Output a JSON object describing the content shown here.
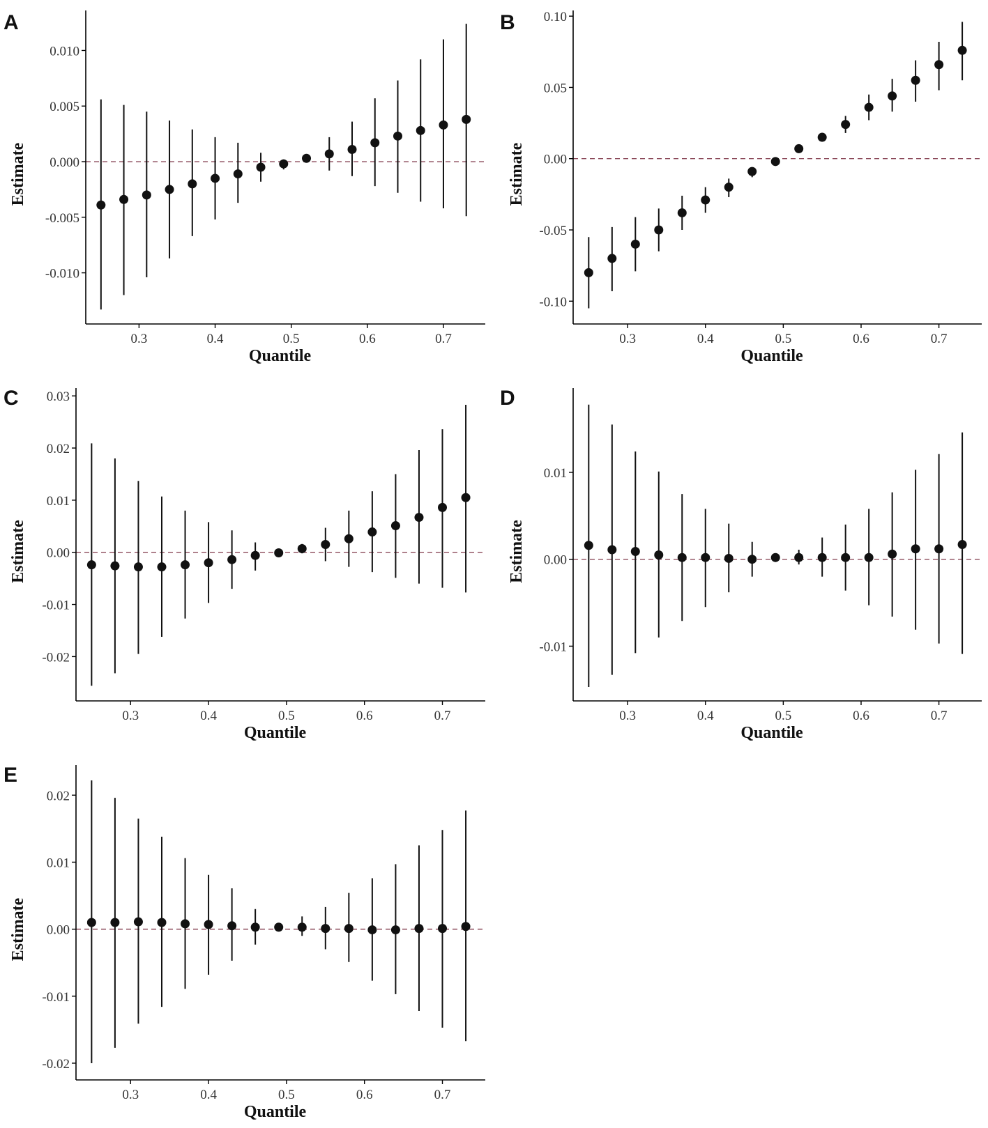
{
  "figure": {
    "colors": {
      "points": "#111111",
      "axes": "#000000",
      "reference_line": "#8b4a5a"
    }
  },
  "chart_data": [
    {
      "panel": "A",
      "type": "scatter",
      "title": "",
      "xlabel": "Quantile",
      "ylabel": "Estimate",
      "xlim": [
        0.23,
        0.755
      ],
      "ylim": [
        -0.0146,
        0.0136
      ],
      "xticks": [
        0.3,
        0.4,
        0.5,
        0.6,
        0.7
      ],
      "xtick_labels": [
        "0.3",
        "0.4",
        "0.5",
        "0.6",
        "0.7"
      ],
      "yticks": [
        -0.01,
        -0.005,
        0.0,
        0.005,
        0.01
      ],
      "ytick_labels": [
        "-0.010",
        "-0.005",
        "0.000",
        "0.005",
        "0.010"
      ],
      "reference_line": 0,
      "x": [
        0.25,
        0.28,
        0.31,
        0.34,
        0.37,
        0.4,
        0.43,
        0.46,
        0.49,
        0.52,
        0.55,
        0.58,
        0.61,
        0.64,
        0.67,
        0.7,
        0.73
      ],
      "estimate": [
        -0.0039,
        -0.0034,
        -0.003,
        -0.0025,
        -0.002,
        -0.0015,
        -0.0011,
        -0.0005,
        -0.0002,
        0.0003,
        0.0007,
        0.0011,
        0.0017,
        0.0023,
        0.0028,
        0.0033,
        0.0038
      ],
      "lower": [
        -0.0133,
        -0.012,
        -0.0104,
        -0.0087,
        -0.0067,
        -0.0052,
        -0.0037,
        -0.0018,
        -0.0007,
        0.0,
        -0.0008,
        -0.0013,
        -0.0022,
        -0.0028,
        -0.0036,
        -0.0042,
        -0.0049
      ],
      "upper": [
        0.0056,
        0.0051,
        0.0045,
        0.0037,
        0.0029,
        0.0022,
        0.0017,
        0.0008,
        0.0002,
        0.0006,
        0.0022,
        0.0036,
        0.0057,
        0.0073,
        0.0092,
        0.011,
        0.0124
      ]
    },
    {
      "panel": "B",
      "type": "scatter",
      "title": "",
      "xlabel": "Quantile",
      "ylabel": "Estimate",
      "xlim": [
        0.23,
        0.755
      ],
      "ylim": [
        -0.116,
        0.104
      ],
      "xticks": [
        0.3,
        0.4,
        0.5,
        0.6,
        0.7
      ],
      "xtick_labels": [
        "0.3",
        "0.4",
        "0.5",
        "0.6",
        "0.7"
      ],
      "yticks": [
        -0.1,
        -0.05,
        0.0,
        0.05,
        0.1
      ],
      "ytick_labels": [
        "-0.10",
        "-0.05",
        "0.00",
        "0.05",
        "0.10"
      ],
      "reference_line": 0,
      "x": [
        0.25,
        0.28,
        0.31,
        0.34,
        0.37,
        0.4,
        0.43,
        0.46,
        0.49,
        0.52,
        0.55,
        0.58,
        0.61,
        0.64,
        0.67,
        0.7,
        0.73
      ],
      "estimate": [
        -0.08,
        -0.07,
        -0.06,
        -0.05,
        -0.038,
        -0.029,
        -0.02,
        -0.009,
        -0.002,
        0.007,
        0.015,
        0.024,
        0.036,
        0.044,
        0.055,
        0.066,
        0.076
      ],
      "lower": [
        -0.105,
        -0.093,
        -0.079,
        -0.065,
        -0.05,
        -0.038,
        -0.027,
        -0.013,
        -0.004,
        0.005,
        0.012,
        0.018,
        0.027,
        0.033,
        0.04,
        0.048,
        0.055
      ],
      "upper": [
        -0.055,
        -0.048,
        -0.041,
        -0.035,
        -0.026,
        -0.02,
        -0.014,
        -0.006,
        0.0,
        0.01,
        0.018,
        0.03,
        0.045,
        0.056,
        0.069,
        0.082,
        0.096
      ]
    },
    {
      "panel": "C",
      "type": "scatter",
      "title": "",
      "xlabel": "Quantile",
      "ylabel": "Estimate",
      "xlim": [
        0.23,
        0.755
      ],
      "ylim": [
        -0.0285,
        0.0315
      ],
      "xticks": [
        0.3,
        0.4,
        0.5,
        0.6,
        0.7
      ],
      "xtick_labels": [
        "0.3",
        "0.4",
        "0.5",
        "0.6",
        "0.7"
      ],
      "yticks": [
        -0.02,
        -0.01,
        0.0,
        0.01,
        0.02,
        0.03
      ],
      "ytick_labels": [
        "-0.02",
        "-0.01",
        "0.00",
        "0.01",
        "0.02",
        "0.03"
      ],
      "reference_line": 0,
      "x": [
        0.25,
        0.28,
        0.31,
        0.34,
        0.37,
        0.4,
        0.43,
        0.46,
        0.49,
        0.52,
        0.55,
        0.58,
        0.61,
        0.64,
        0.67,
        0.7,
        0.73
      ],
      "estimate": [
        -0.0024,
        -0.0026,
        -0.0028,
        -0.0028,
        -0.0024,
        -0.002,
        -0.0014,
        -0.0006,
        -0.0001,
        0.0007,
        0.0015,
        0.0026,
        0.0039,
        0.0051,
        0.0067,
        0.0086,
        0.0105
      ],
      "lower": [
        -0.0256,
        -0.0232,
        -0.0195,
        -0.0162,
        -0.0127,
        -0.0097,
        -0.007,
        -0.0035,
        -0.0008,
        -0.0002,
        -0.0017,
        -0.0028,
        -0.0038,
        -0.0049,
        -0.006,
        -0.0068,
        -0.0077
      ],
      "upper": [
        0.0209,
        0.018,
        0.0137,
        0.0107,
        0.008,
        0.0058,
        0.0042,
        0.0019,
        0.0004,
        0.0016,
        0.0047,
        0.008,
        0.0117,
        0.015,
        0.0196,
        0.0236,
        0.0283
      ]
    },
    {
      "panel": "D",
      "type": "scatter",
      "title": "",
      "xlabel": "Quantile",
      "ylabel": "Estimate",
      "xlim": [
        0.23,
        0.755
      ],
      "ylim": [
        -0.0163,
        0.0197
      ],
      "xticks": [
        0.3,
        0.4,
        0.5,
        0.6,
        0.7
      ],
      "xtick_labels": [
        "0.3",
        "0.4",
        "0.5",
        "0.6",
        "0.7"
      ],
      "yticks": [
        -0.01,
        0.0,
        0.01
      ],
      "ytick_labels": [
        "-0.01",
        "0.00",
        "0.01"
      ],
      "reference_line": 0,
      "x": [
        0.25,
        0.28,
        0.31,
        0.34,
        0.37,
        0.4,
        0.43,
        0.46,
        0.49,
        0.52,
        0.55,
        0.58,
        0.61,
        0.64,
        0.67,
        0.7,
        0.73
      ],
      "estimate": [
        0.0016,
        0.0011,
        0.0009,
        0.0005,
        0.0002,
        0.0002,
        0.0001,
        0.0,
        0.0002,
        0.0002,
        0.0002,
        0.0002,
        0.0002,
        0.0006,
        0.0012,
        0.0012,
        0.0017
      ],
      "lower": [
        -0.0147,
        -0.0133,
        -0.0108,
        -0.009,
        -0.0071,
        -0.0055,
        -0.0038,
        -0.002,
        -0.0002,
        -0.0006,
        -0.002,
        -0.0036,
        -0.0053,
        -0.0066,
        -0.0081,
        -0.0097,
        -0.0109
      ],
      "upper": [
        0.0178,
        0.0155,
        0.0124,
        0.0101,
        0.0075,
        0.0058,
        0.0041,
        0.002,
        0.0006,
        0.0011,
        0.0025,
        0.004,
        0.0058,
        0.0077,
        0.0103,
        0.0121,
        0.0146
      ]
    },
    {
      "panel": "E",
      "type": "scatter",
      "title": "",
      "xlabel": "Quantile",
      "ylabel": "Estimate",
      "xlim": [
        0.23,
        0.755
      ],
      "ylim": [
        -0.0225,
        0.0245
      ],
      "xticks": [
        0.3,
        0.4,
        0.5,
        0.6,
        0.7
      ],
      "xtick_labels": [
        "0.3",
        "0.4",
        "0.5",
        "0.6",
        "0.7"
      ],
      "yticks": [
        -0.02,
        -0.01,
        0.0,
        0.01,
        0.02
      ],
      "ytick_labels": [
        "-0.02",
        "-0.01",
        "0.00",
        "0.01",
        "0.02"
      ],
      "reference_line": 0,
      "x": [
        0.25,
        0.28,
        0.31,
        0.34,
        0.37,
        0.4,
        0.43,
        0.46,
        0.49,
        0.52,
        0.55,
        0.58,
        0.61,
        0.64,
        0.67,
        0.7,
        0.73
      ],
      "estimate": [
        0.001,
        0.001,
        0.0011,
        0.001,
        0.0008,
        0.0007,
        0.0005,
        0.0003,
        0.0003,
        0.0003,
        0.0001,
        0.0001,
        -0.0001,
        -0.0001,
        0.0001,
        0.0001,
        0.0004
      ],
      "lower": [
        -0.02,
        -0.0177,
        -0.0141,
        -0.0116,
        -0.0089,
        -0.0068,
        -0.0047,
        -0.0023,
        -0.0002,
        -0.001,
        -0.003,
        -0.0049,
        -0.0077,
        -0.0097,
        -0.0122,
        -0.0147,
        -0.0167
      ],
      "upper": [
        0.0222,
        0.0196,
        0.0165,
        0.0138,
        0.0106,
        0.0081,
        0.0061,
        0.003,
        0.0008,
        0.0019,
        0.0033,
        0.0054,
        0.0076,
        0.0097,
        0.0125,
        0.0148,
        0.0177
      ]
    }
  ]
}
